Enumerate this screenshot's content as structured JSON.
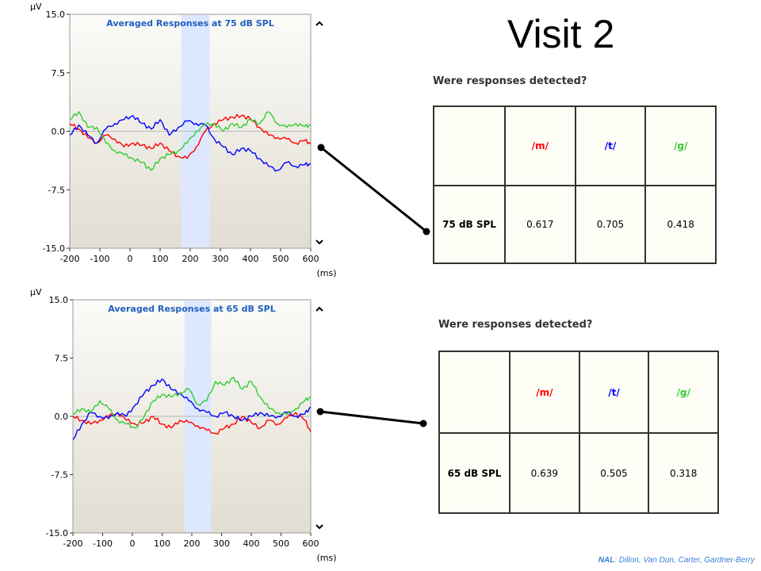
{
  "title": "Visit 2",
  "credit": {
    "lead": "NAL",
    "rest": ": Dillon,  Van Dun, Carter, Gardner-Berry"
  },
  "colors": {
    "m": "#ff0000",
    "t": "#0000ff",
    "g": "#33cc33",
    "window": "#dde8ff",
    "panel_top": "#fbfbf8",
    "panel_bottom": "#e2ddd2"
  },
  "chart_data": [
    {
      "type": "line",
      "title": "Averaged Responses at 75 dB SPL",
      "ylabel": "µV",
      "xlabel": "(ms)",
      "xlim": [
        -200,
        600
      ],
      "ylim": [
        -15,
        15
      ],
      "xticks": [
        "-200",
        "-100",
        "0",
        "100",
        "200",
        "300",
        "400",
        "500",
        "600"
      ],
      "yticks": [
        "15.0",
        "7.5",
        "0.0",
        "-7.5",
        "-15.0"
      ],
      "window": [
        170,
        265
      ],
      "series": [
        {
          "key": "m",
          "x": [
            -200,
            -170,
            -140,
            -110,
            -80,
            -50,
            -20,
            10,
            40,
            70,
            100,
            130,
            160,
            190,
            220,
            250,
            280,
            310,
            340,
            370,
            400,
            430,
            460,
            490,
            520,
            550,
            580,
            600
          ],
          "values": [
            1.0,
            0.3,
            -0.8,
            -1.5,
            -0.5,
            -1.0,
            -2.0,
            -1.5,
            -1.8,
            -2.2,
            -1.5,
            -2.5,
            -3.2,
            -3.5,
            -2.0,
            0.0,
            1.0,
            1.5,
            1.8,
            2.0,
            1.6,
            0.5,
            -0.5,
            -0.8,
            -1.0,
            -1.5,
            -1.2,
            -1.6
          ]
        },
        {
          "key": "t",
          "x": [
            -200,
            -170,
            -140,
            -110,
            -80,
            -50,
            -20,
            10,
            40,
            70,
            100,
            130,
            160,
            190,
            220,
            250,
            280,
            310,
            340,
            370,
            400,
            430,
            460,
            490,
            520,
            550,
            580,
            600
          ],
          "values": [
            -0.5,
            0.8,
            -0.5,
            -1.5,
            0.3,
            1.0,
            1.5,
            2.0,
            1.0,
            0.3,
            1.5,
            -0.5,
            0.5,
            1.3,
            1.0,
            0.8,
            -1.0,
            -2.0,
            -3.0,
            -2.2,
            -2.5,
            -3.5,
            -4.5,
            -5.0,
            -4.0,
            -4.5,
            -4.3,
            -4.2
          ]
        },
        {
          "key": "g",
          "x": [
            -200,
            -170,
            -140,
            -110,
            -80,
            -50,
            -20,
            10,
            40,
            70,
            100,
            130,
            160,
            190,
            220,
            250,
            280,
            310,
            340,
            370,
            400,
            430,
            460,
            490,
            520,
            550,
            580,
            600
          ],
          "values": [
            1.5,
            2.5,
            0.5,
            0.5,
            -1.5,
            -2.5,
            -3.0,
            -3.5,
            -4.0,
            -5.0,
            -3.5,
            -3.0,
            -2.5,
            -1.5,
            0.0,
            0.8,
            1.0,
            0.0,
            1.0,
            0.5,
            1.5,
            1.0,
            2.5,
            1.0,
            0.5,
            1.0,
            0.6,
            0.8
          ]
        }
      ]
    },
    {
      "type": "line",
      "title": "Averaged Responses at 65 dB SPL",
      "ylabel": "µV",
      "xlabel": "(ms)",
      "xlim": [
        -200,
        600
      ],
      "ylim": [
        -15,
        15
      ],
      "xticks": [
        "-200",
        "-100",
        "0",
        "100",
        "200",
        "300",
        "400",
        "500",
        "600"
      ],
      "yticks": [
        "15.0",
        "7.5",
        "0.0",
        "-7.5",
        "-15.0"
      ],
      "window": [
        175,
        265
      ],
      "series": [
        {
          "key": "m",
          "x": [
            -200,
            -170,
            -140,
            -110,
            -80,
            -50,
            -20,
            10,
            40,
            70,
            100,
            130,
            160,
            190,
            220,
            250,
            280,
            310,
            340,
            370,
            400,
            430,
            460,
            490,
            520,
            550,
            580,
            600
          ],
          "values": [
            0.0,
            -0.5,
            -1.0,
            -0.5,
            0.0,
            0.5,
            -0.5,
            -1.0,
            -0.8,
            0.0,
            -1.0,
            -1.5,
            -0.5,
            -0.8,
            -1.2,
            -1.8,
            -2.2,
            -1.5,
            -1.0,
            0.0,
            -0.8,
            -1.5,
            -0.5,
            -1.0,
            -0.2,
            0.5,
            -0.5,
            -2.0
          ]
        },
        {
          "key": "t",
          "x": [
            -200,
            -170,
            -140,
            -110,
            -80,
            -50,
            -20,
            10,
            40,
            70,
            100,
            130,
            160,
            190,
            220,
            250,
            280,
            310,
            340,
            370,
            400,
            430,
            460,
            490,
            520,
            550,
            580,
            600
          ],
          "values": [
            -3.0,
            -1.0,
            0.5,
            0.0,
            -0.3,
            0.5,
            0.0,
            1.5,
            3.0,
            4.0,
            4.8,
            3.5,
            3.0,
            2.0,
            1.0,
            0.5,
            0.0,
            0.5,
            0.0,
            -0.5,
            0.0,
            0.5,
            0.0,
            0.0,
            0.5,
            0.0,
            0.3,
            1.2
          ]
        },
        {
          "key": "g",
          "x": [
            -200,
            -170,
            -140,
            -110,
            -80,
            -50,
            -20,
            10,
            40,
            70,
            100,
            130,
            160,
            190,
            220,
            250,
            280,
            310,
            340,
            370,
            400,
            430,
            460,
            490,
            520,
            550,
            580,
            600
          ],
          "values": [
            0.3,
            1.0,
            0.5,
            2.0,
            1.0,
            -0.5,
            -1.0,
            -1.5,
            0.0,
            2.0,
            2.8,
            2.5,
            3.0,
            3.5,
            1.5,
            2.0,
            4.5,
            4.0,
            5.0,
            3.5,
            4.5,
            2.5,
            1.0,
            0.5,
            0.2,
            1.0,
            2.0,
            2.5
          ]
        }
      ]
    }
  ],
  "detect_tables": [
    {
      "question": "Were responses detected?",
      "headers": [
        "/m/",
        "/t/",
        "/g/"
      ],
      "row_label": "75 dB SPL",
      "values": [
        "0.617",
        "0.705",
        "0.418"
      ]
    },
    {
      "question": "Were responses detected?",
      "headers": [
        "/m/",
        "/t/",
        "/g/"
      ],
      "row_label": "65 dB SPL",
      "values": [
        "0.639",
        "0.505",
        "0.318"
      ]
    }
  ]
}
